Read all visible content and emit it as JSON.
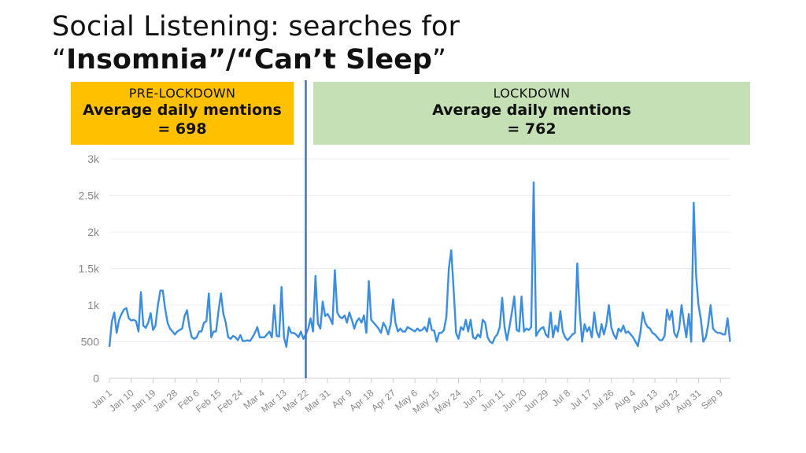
{
  "title": {
    "line1": "Social Listening: searches for",
    "line2_open_quote": "“",
    "line2_main": "Insomnia”/“Can’t Sleep",
    "line2_close_quote": "”"
  },
  "pre_lockdown": {
    "label": "PRE-LOCKDOWN",
    "metric": "Average daily mentions",
    "value": "= 698",
    "color": "#FFC000"
  },
  "lockdown": {
    "label": "LOCKDOWN",
    "metric": "Average daily mentions",
    "value": "= 762",
    "color": "#C5E0B4"
  },
  "chart_data": {
    "type": "line",
    "title": "",
    "xlabel": "",
    "ylabel": "",
    "ylim": [
      0,
      3000
    ],
    "yticks": [
      0,
      500,
      1000,
      1500,
      2000,
      2500,
      3000
    ],
    "ytick_labels": [
      "0",
      "500",
      "1k",
      "1.5k",
      "2k",
      "2.5k",
      "3k"
    ],
    "xtick_labels": [
      "Jan 1",
      "Jan 10",
      "Jan 19",
      "Jan 28",
      "Feb 6",
      "Feb 15",
      "Feb 24",
      "Mar 4",
      "Mar 13",
      "Mar 22",
      "Mar 31",
      "Apr 9",
      "Apr 18",
      "Apr 27",
      "May 6",
      "May 15",
      "May 24",
      "Jun 2",
      "Jun 11",
      "Jun 20",
      "Jun 29",
      "Jul 8",
      "Jul 17",
      "Jul 26",
      "Aug 4",
      "Aug 13",
      "Aug 22",
      "Aug 31",
      "Sep 9"
    ],
    "xtick_interval_days": 9,
    "first_date": "Jan 1",
    "interval": "daily",
    "lockdown_marker": "Mar 22",
    "grid": true,
    "line_color": "#3B8DE0",
    "marker_color": "#4472C4",
    "values": [
      430,
      780,
      900,
      620,
      800,
      880,
      940,
      960,
      820,
      790,
      800,
      780,
      640,
      1180,
      720,
      690,
      760,
      890,
      660,
      720,
      1000,
      1200,
      1200,
      950,
      760,
      680,
      640,
      600,
      640,
      660,
      680,
      850,
      930,
      700,
      560,
      540,
      560,
      640,
      640,
      760,
      780,
      1160,
      560,
      640,
      640,
      920,
      1160,
      880,
      760,
      560,
      540,
      580,
      560,
      520,
      590,
      510,
      510,
      520,
      510,
      560,
      620,
      700,
      560,
      560,
      560,
      600,
      640,
      560,
      1000,
      580,
      570,
      1250,
      560,
      430,
      700,
      620,
      620,
      600,
      560,
      640,
      540,
      600,
      680,
      820,
      640,
      1400,
      750,
      680,
      1050,
      850,
      880,
      820,
      740,
      1480,
      900,
      840,
      820,
      860,
      760,
      900,
      800,
      680,
      780,
      820,
      760,
      860,
      620,
      1330,
      800,
      760,
      720,
      680,
      620,
      760,
      700,
      600,
      740,
      1080,
      760,
      640,
      680,
      640,
      640,
      700,
      680,
      660,
      640,
      680,
      650,
      660,
      700,
      640,
      820,
      660,
      650,
      500,
      620,
      620,
      660,
      840,
      1500,
      1750,
      1200,
      620,
      540,
      700,
      660,
      800,
      640,
      800,
      560,
      540,
      600,
      560,
      800,
      760,
      560,
      500,
      480,
      560,
      600,
      700,
      1100,
      700,
      520,
      700,
      900,
      1120,
      660,
      640,
      1120,
      640,
      680,
      660,
      700,
      2680,
      580,
      640,
      680,
      700,
      600,
      560,
      900,
      560,
      720,
      640,
      920,
      640,
      560,
      520,
      560,
      600,
      620,
      1570,
      900,
      500,
      740,
      640,
      700,
      560,
      900,
      640,
      560,
      740,
      600,
      740,
      1000,
      700,
      600,
      540,
      680,
      640,
      720,
      620,
      640,
      600,
      560,
      500,
      440,
      620,
      900,
      760,
      700,
      680,
      620,
      600,
      560,
      520,
      520,
      580,
      940,
      800,
      920,
      620,
      560,
      680,
      1000,
      760,
      560,
      880,
      500,
      2400,
      1400,
      1000,
      800,
      500,
      560,
      740,
      1000,
      680,
      640,
      620,
      620,
      600,
      600,
      820,
      500
    ]
  }
}
